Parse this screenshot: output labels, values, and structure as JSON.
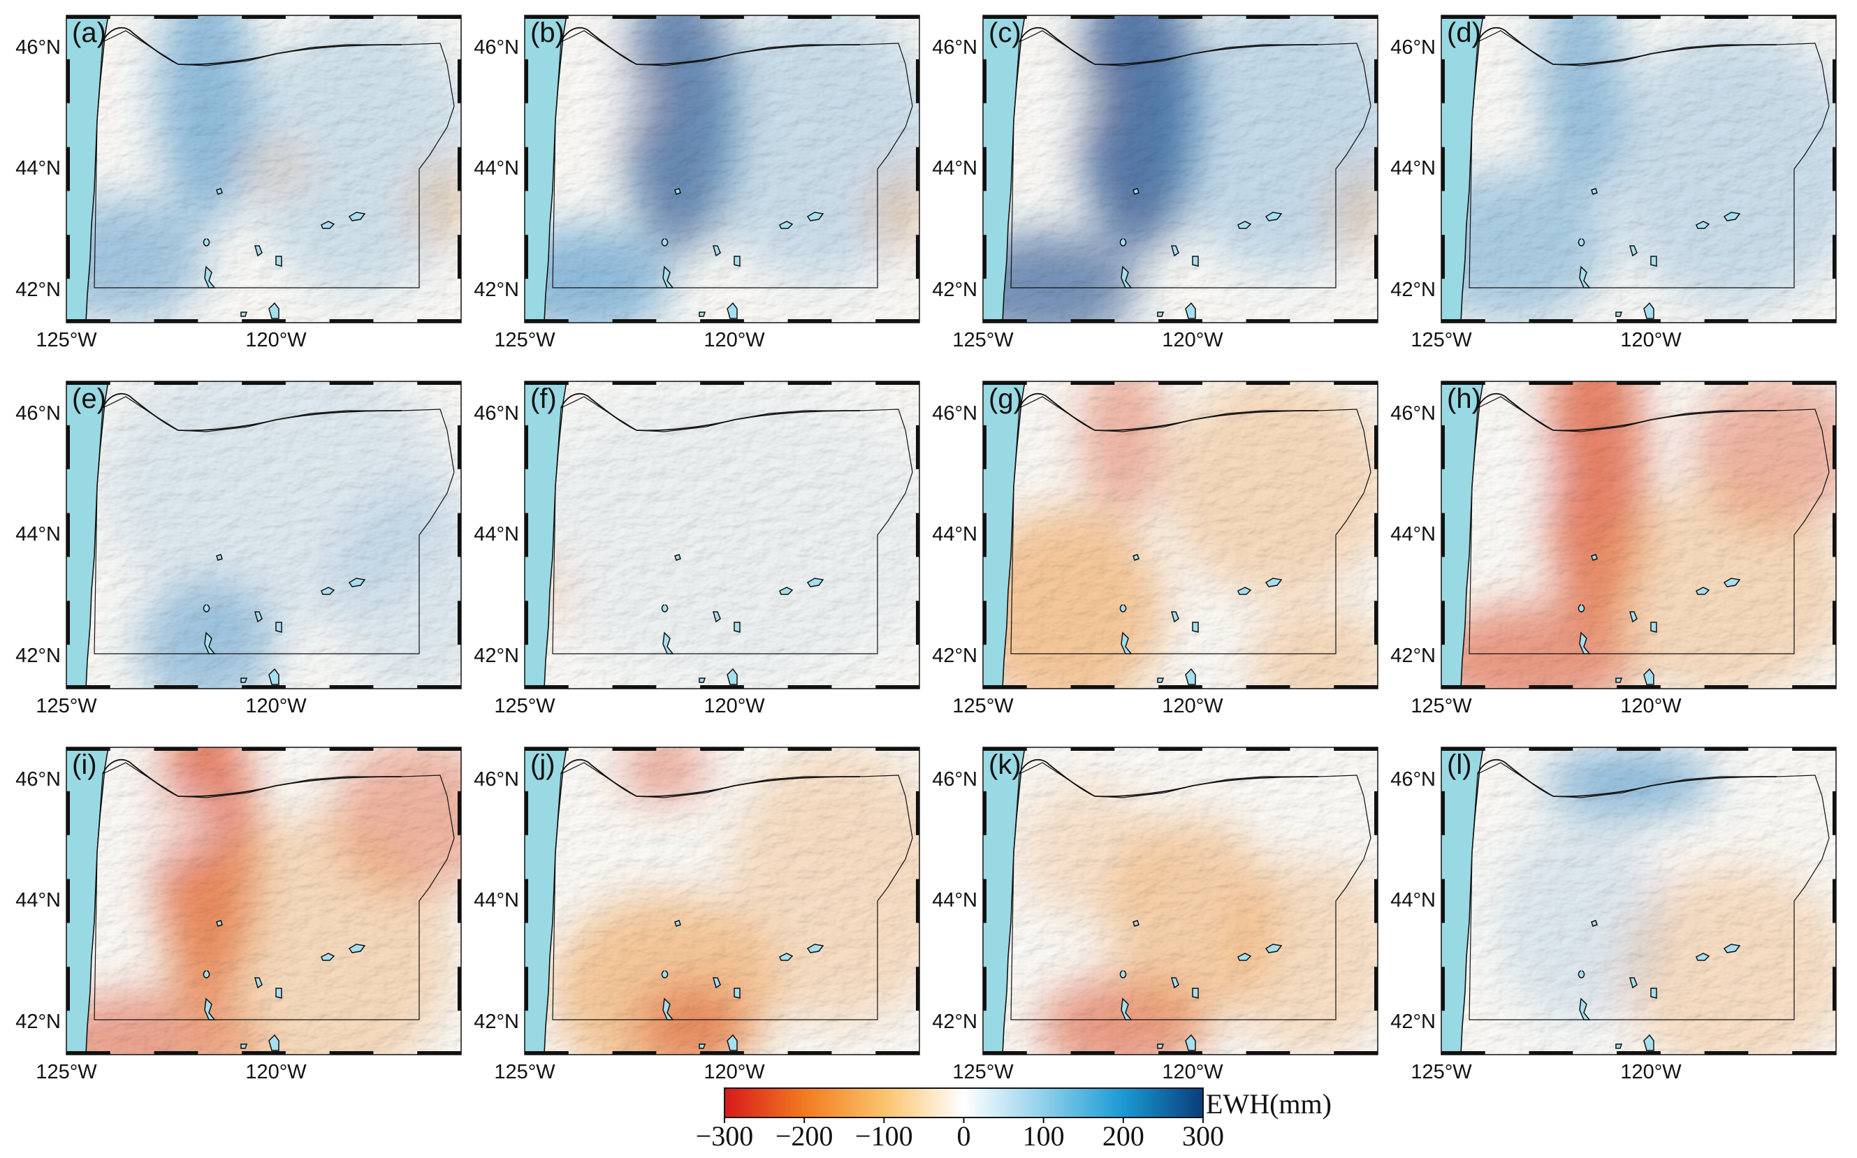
{
  "panels": [
    {
      "label": "(a)",
      "theme": "wetA"
    },
    {
      "label": "(b)",
      "theme": "wetB"
    },
    {
      "label": "(c)",
      "theme": "wetC"
    },
    {
      "label": "(d)",
      "theme": "wetD"
    },
    {
      "label": "(e)",
      "theme": "lightBlue"
    },
    {
      "label": "(f)",
      "theme": "neutral"
    },
    {
      "label": "(g)",
      "theme": "dryG"
    },
    {
      "label": "(h)",
      "theme": "dryH"
    },
    {
      "label": "(i)",
      "theme": "dryI"
    },
    {
      "label": "(j)",
      "theme": "dryJ"
    },
    {
      "label": "(k)",
      "theme": "dryK"
    },
    {
      "label": "(l)",
      "theme": "mixL"
    }
  ],
  "lat_ticks": [
    "46°N",
    "44°N",
    "42°N"
  ],
  "lon_ticks": [
    "125°W",
    "120°W"
  ],
  "colorbar": {
    "title": "EWH(mm)",
    "ticks": [
      "−300",
      "−200",
      "−100",
      "0",
      "100",
      "200",
      "300"
    ],
    "stops": [
      "#d7191c",
      "#f27a1f",
      "#fbc36b",
      "#ffffff",
      "#8fd0ea",
      "#1a9ad4",
      "#0a3d7a"
    ]
  },
  "colors": {
    "ocean": "#99d9e3",
    "lake": "#a6dff0",
    "dry": "#e8663a",
    "wet": "#2f77b5"
  }
}
